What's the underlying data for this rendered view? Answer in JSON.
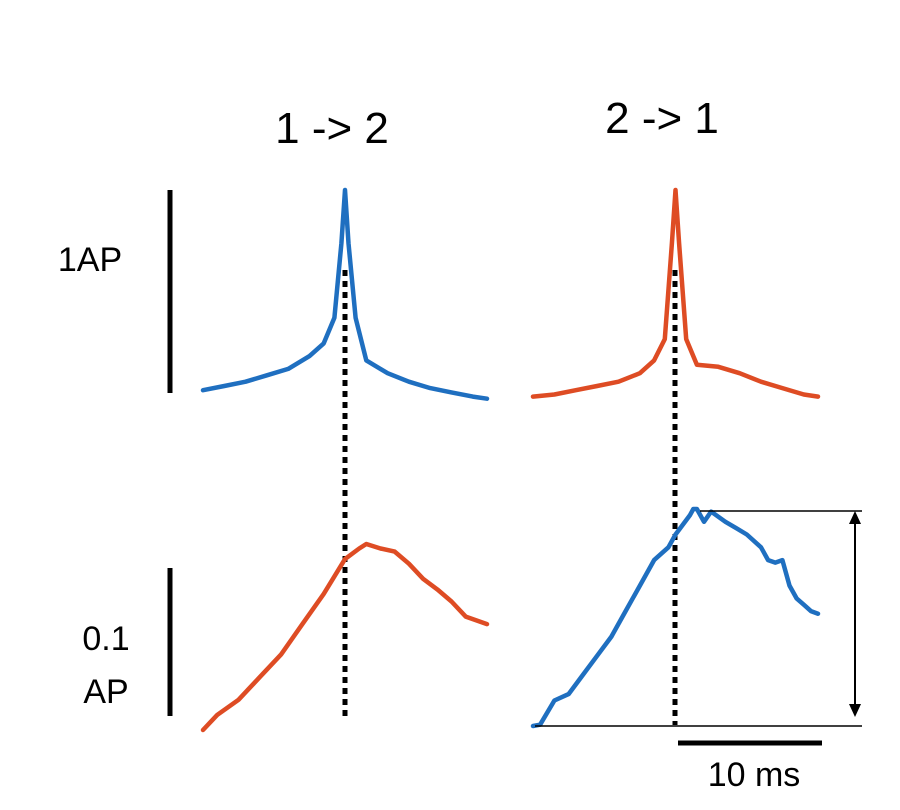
{
  "colors": {
    "blue": "#1f6fc0",
    "orange": "#de4c24",
    "black": "#000000"
  },
  "chart_data": {
    "type": "line",
    "column_titles": [
      "1 -> 2",
      "2 -> 1"
    ],
    "scale_bars": {
      "top_row": "1AP",
      "bottom_row": [
        "0.1",
        "AP"
      ],
      "time": "10 ms"
    },
    "panels": [
      {
        "row": "top",
        "column": 0,
        "color": "blue",
        "x": [
          -20,
          -17,
          -14,
          -11,
          -8,
          -5,
          -3,
          -1.5,
          -0.5,
          0,
          0.5,
          1.5,
          3,
          6,
          9,
          12,
          15,
          18,
          20
        ],
        "y": [
          0.06,
          0.08,
          0.1,
          0.13,
          0.16,
          0.22,
          0.28,
          0.4,
          0.75,
          1.0,
          0.75,
          0.4,
          0.2,
          0.14,
          0.1,
          0.07,
          0.05,
          0.03,
          0.02
        ]
      },
      {
        "row": "top",
        "column": 1,
        "color": "orange",
        "x": [
          -20,
          -17,
          -14,
          -11,
          -8,
          -5,
          -3,
          -1.5,
          -0.5,
          0,
          0.5,
          1.5,
          3,
          6,
          9,
          12,
          15,
          18,
          20
        ],
        "y": [
          0.03,
          0.04,
          0.06,
          0.08,
          0.1,
          0.14,
          0.2,
          0.3,
          0.75,
          1.0,
          0.75,
          0.3,
          0.18,
          0.17,
          0.14,
          0.1,
          0.07,
          0.04,
          0.03
        ]
      },
      {
        "row": "bottom",
        "column": 0,
        "color": "orange",
        "x": [
          -20,
          -18,
          -15,
          -12,
          -9,
          -6,
          -3,
          0,
          2,
          3,
          5,
          7,
          9,
          11,
          13,
          15,
          17,
          20
        ],
        "y": [
          0.0,
          0.01,
          0.02,
          0.035,
          0.05,
          0.07,
          0.09,
          0.113,
          0.12,
          0.123,
          0.12,
          0.118,
          0.11,
          0.1,
          0.093,
          0.085,
          0.075,
          0.07
        ]
      },
      {
        "row": "bottom",
        "column": 1,
        "color": "blue",
        "x": [
          -20,
          -19,
          -17,
          -15,
          -13,
          -11,
          -9,
          -7,
          -5,
          -3,
          -1,
          0,
          2,
          2.5,
          3,
          4,
          5,
          7,
          8.5,
          10,
          12,
          13,
          14,
          15,
          16,
          17,
          18,
          19,
          20
        ],
        "y": [
          0.0,
          0.001,
          0.02,
          0.025,
          0.04,
          0.055,
          0.07,
          0.09,
          0.11,
          0.13,
          0.14,
          0.15,
          0.165,
          0.17,
          0.17,
          0.16,
          0.168,
          0.16,
          0.155,
          0.15,
          0.14,
          0.13,
          0.128,
          0.13,
          0.11,
          0.1,
          0.095,
          0.09,
          0.088
        ]
      }
    ]
  }
}
